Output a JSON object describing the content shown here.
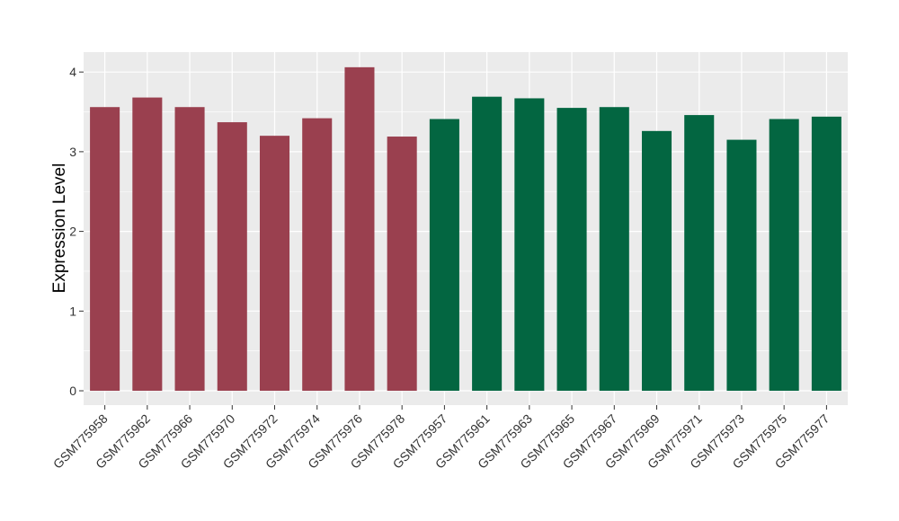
{
  "chart_data": {
    "type": "bar",
    "ylabel": "Expression Level",
    "xlabel": "",
    "ylim": [
      -0.18,
      4.25
    ],
    "yticks": [
      0,
      1,
      2,
      3,
      4
    ],
    "grid": true,
    "legend": "none",
    "colors": {
      "panel_bg": "#EBEBEB",
      "grid": "#FFFFFF",
      "group_a": "#9A404F",
      "group_b": "#036641"
    },
    "categories": [
      "GSM775958",
      "GSM775962",
      "GSM775966",
      "GSM775970",
      "GSM775972",
      "GSM775974",
      "GSM775976",
      "GSM775978",
      "GSM775957",
      "GSM775961",
      "GSM775963",
      "GSM775965",
      "GSM775967",
      "GSM775969",
      "GSM775971",
      "GSM775973",
      "GSM775975",
      "GSM775977"
    ],
    "values": [
      3.56,
      3.68,
      3.56,
      3.37,
      3.2,
      3.42,
      4.06,
      3.19,
      3.41,
      3.69,
      3.67,
      3.55,
      3.56,
      3.26,
      3.46,
      3.15,
      3.41,
      3.44
    ],
    "bar_groups": [
      "a",
      "a",
      "a",
      "a",
      "a",
      "a",
      "a",
      "a",
      "b",
      "b",
      "b",
      "b",
      "b",
      "b",
      "b",
      "b",
      "b",
      "b"
    ]
  }
}
